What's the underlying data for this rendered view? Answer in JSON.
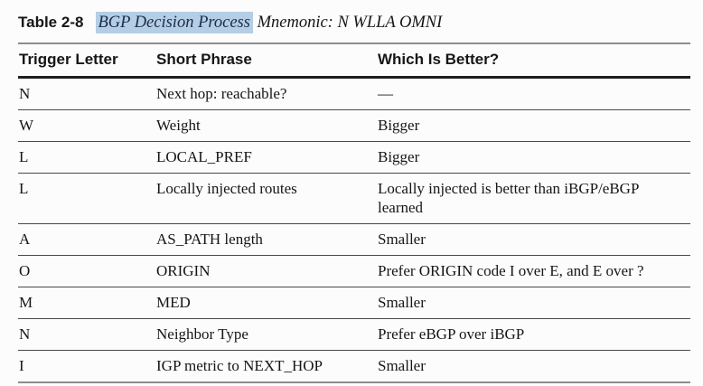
{
  "title": {
    "label": "Table 2-8",
    "highlighted_phrase": "BGP Decision Process",
    "rest": " Mnemonic: N WLLA OMNI"
  },
  "colors": {
    "page_bg": "#fcfcfc",
    "text": "#161616",
    "highlight_bg": "#b3cee5",
    "highlight_text": "#1e2c49",
    "rule_gray": "#8c8c8c",
    "rule_dark": "#1f1f1f",
    "row_rule": "#4a4a4a"
  },
  "table": {
    "columns": [
      "Trigger Letter",
      "Short Phrase",
      "Which Is Better?"
    ],
    "rows": [
      {
        "trigger": "N",
        "phrase": "Next hop: reachable?",
        "better": "—"
      },
      {
        "trigger": "W",
        "phrase": "Weight",
        "better": "Bigger"
      },
      {
        "trigger": "L",
        "phrase": "LOCAL_PREF",
        "better": "Bigger"
      },
      {
        "trigger": "L",
        "phrase": "Locally injected routes",
        "better": "Locally injected is better than iBGP/eBGP learned"
      },
      {
        "trigger": "A",
        "phrase": "AS_PATH length",
        "better": "Smaller"
      },
      {
        "trigger": "O",
        "phrase": "ORIGIN",
        "better": "Prefer ORIGIN code I over E, and E over ?"
      },
      {
        "trigger": "M",
        "phrase": "MED",
        "better": "Smaller"
      },
      {
        "trigger": "N",
        "phrase": "Neighbor Type",
        "better": "Prefer eBGP over iBGP"
      },
      {
        "trigger": "I",
        "phrase": "IGP metric to NEXT_HOP",
        "better": "Smaller"
      }
    ]
  }
}
